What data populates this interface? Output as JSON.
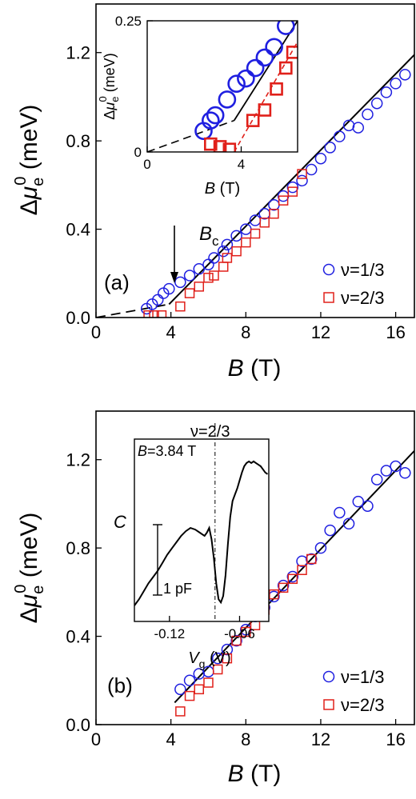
{
  "colors": {
    "nu13": "#1f1fe0",
    "nu23": "#e0201a",
    "fit": "#000000"
  },
  "chart_data": [
    {
      "type": "scatter",
      "panel_label": "(a)",
      "xlabel": "B (T)",
      "ylabel": "Δμe0 (meV)",
      "xlim": [
        0,
        17
      ],
      "ylim": [
        0,
        1.42
      ],
      "xticks": [
        0,
        4,
        8,
        12,
        16
      ],
      "yticks": [
        0.0,
        0.4,
        0.8,
        1.2
      ],
      "xtick_labels": [
        "0",
        "4",
        "8",
        "12",
        "16"
      ],
      "ytick_labels": [
        "0.0",
        "0.4",
        "0.8",
        "1.2"
      ],
      "legend_position": "bottom-right",
      "series": [
        {
          "name": "ν=1/3",
          "marker": "circle",
          "x": [
            2.7,
            3.0,
            3.3,
            3.6,
            3.9,
            4.5,
            5.0,
            5.5,
            6.0,
            6.3,
            6.8,
            7.0,
            7.5,
            8.0,
            8.5,
            9.0,
            9.5,
            10.0,
            10.5,
            11.0,
            11.5,
            12.0,
            12.5,
            13.0,
            13.5,
            14.0,
            14.5,
            15.0,
            15.5,
            16.0,
            16.5
          ],
          "y": [
            0.04,
            0.06,
            0.08,
            0.11,
            0.13,
            0.16,
            0.19,
            0.22,
            0.24,
            0.27,
            0.3,
            0.33,
            0.37,
            0.4,
            0.44,
            0.47,
            0.51,
            0.55,
            0.59,
            0.62,
            0.67,
            0.72,
            0.77,
            0.82,
            0.87,
            0.86,
            0.92,
            0.97,
            1.02,
            1.06,
            1.1
          ]
        },
        {
          "name": "ν=2/3",
          "marker": "square",
          "x": [
            2.8,
            3.1,
            3.5,
            4.5,
            5.0,
            5.5,
            6.0,
            6.3,
            6.8,
            7.0,
            7.5,
            8.0,
            8.5,
            9.0,
            9.5,
            10.0,
            10.5,
            11.0
          ],
          "y": [
            0.01,
            0.01,
            0.01,
            0.05,
            0.11,
            0.14,
            0.18,
            0.19,
            0.23,
            0.27,
            0.3,
            0.34,
            0.38,
            0.43,
            0.47,
            0.53,
            0.57,
            0.65
          ]
        }
      ],
      "fit_line": {
        "solid": [
          [
            3.9,
            0.06
          ],
          [
            17,
            1.19
          ]
        ],
        "dashed": [
          [
            0,
            0
          ],
          [
            3.9,
            0.06
          ]
        ]
      },
      "annotation": {
        "text_main": "B",
        "text_sub": "c",
        "arrow_x": 3.9
      },
      "inset": {
        "xlim": [
          0,
          6.4
        ],
        "ylim": [
          0,
          0.25
        ],
        "xticks": [
          0,
          4
        ],
        "yticks": [
          0,
          0.25
        ],
        "xtick_labels": [
          "0",
          "4"
        ],
        "ytick_labels": [
          "0",
          "0.25"
        ],
        "xlabel": "B (T)",
        "ylabel": "Δμe0 (meV)",
        "series": [
          {
            "name": "ν=1/3",
            "marker": "circle",
            "x": [
              2.4,
              2.7,
              2.9,
              3.4,
              3.8,
              4.2,
              4.6,
              5.0,
              5.4,
              5.9
            ],
            "y": [
              0.04,
              0.06,
              0.07,
              0.1,
              0.13,
              0.14,
              0.16,
              0.18,
              0.2,
              0.24
            ]
          },
          {
            "name": "ν=2/3",
            "marker": "square",
            "x": [
              2.7,
              3.1,
              3.5,
              4.5,
              5.0,
              5.5,
              5.9,
              6.2
            ],
            "y": [
              0.015,
              0.01,
              0.005,
              0.06,
              0.08,
              0.12,
              0.16,
              0.19
            ]
          }
        ],
        "fit_line": {
          "solid": [
            [
              3.7,
              0.06
            ],
            [
              6.4,
              0.25
            ]
          ],
          "dashed": [
            [
              0,
              0
            ],
            [
              3.7,
              0.06
            ]
          ],
          "red_dashed": [
            [
              3.7,
              0.0
            ],
            [
              6.4,
              0.21
            ]
          ]
        }
      }
    },
    {
      "type": "scatter",
      "panel_label": "(b)",
      "xlabel": "B (T)",
      "ylabel": "Δμe0 (meV)",
      "xlim": [
        0,
        17
      ],
      "ylim": [
        0,
        1.42
      ],
      "xticks": [
        0,
        4,
        8,
        12,
        16
      ],
      "yticks": [
        0.0,
        0.4,
        0.8,
        1.2
      ],
      "xtick_labels": [
        "0",
        "4",
        "8",
        "12",
        "16"
      ],
      "ytick_labels": [
        "0.0",
        "0.4",
        "0.8",
        "1.2"
      ],
      "legend_position": "bottom-right",
      "series": [
        {
          "name": "ν=1/3",
          "marker": "circle",
          "x": [
            4.5,
            5.0,
            5.5,
            6.0,
            6.5,
            7.0,
            7.5,
            8.0,
            8.5,
            9.0,
            9.5,
            10.0,
            10.5,
            11.0,
            11.5,
            12.0,
            12.5,
            13.0,
            13.5,
            14.0,
            14.5,
            15.0,
            15.5,
            16.0,
            16.5
          ],
          "y": [
            0.16,
            0.2,
            0.23,
            0.24,
            0.3,
            0.34,
            0.38,
            0.43,
            0.49,
            0.53,
            0.58,
            0.63,
            0.67,
            0.74,
            0.75,
            0.8,
            0.88,
            0.96,
            0.91,
            1.01,
            0.99,
            1.11,
            1.15,
            1.17,
            1.14
          ]
        },
        {
          "name": "ν=2/3",
          "marker": "square",
          "x": [
            4.5,
            5.0,
            5.5,
            6.0,
            6.5,
            7.0,
            7.5,
            8.0,
            8.5,
            9.0,
            9.5,
            10.0,
            10.5,
            11.0,
            11.5
          ],
          "y": [
            0.06,
            0.13,
            0.16,
            0.19,
            0.25,
            0.3,
            0.38,
            0.42,
            0.45,
            0.52,
            0.59,
            0.62,
            0.66,
            0.7,
            0.75
          ]
        }
      ],
      "fit_line": {
        "solid": [
          [
            4.2,
            0.1
          ],
          [
            17,
            1.24
          ]
        ]
      },
      "inset": {
        "xlim": [
          -0.15,
          -0.035
        ],
        "ylim": [
          0,
          1
        ],
        "xticks": [
          -0.12,
          -0.06
        ],
        "xtick_labels": [
          "-0.12",
          "-0.06"
        ],
        "xlabel": "Vg (V)",
        "ylabel": "C",
        "annotation_B": "B=3.84 T",
        "annotation_nu": "ν=2/3",
        "scale_bar": "1 pF",
        "dashdot_x": -0.081,
        "trace": {
          "x": [
            -0.15,
            -0.146,
            -0.142,
            -0.138,
            -0.134,
            -0.13,
            -0.126,
            -0.122,
            -0.118,
            -0.114,
            -0.11,
            -0.106,
            -0.102,
            -0.098,
            -0.094,
            -0.09,
            -0.088,
            -0.086,
            -0.084,
            -0.082,
            -0.08,
            -0.078,
            -0.076,
            -0.074,
            -0.072,
            -0.07,
            -0.068,
            -0.066,
            -0.064,
            -0.062,
            -0.06,
            -0.058,
            -0.056,
            -0.054,
            -0.052,
            -0.05,
            -0.048,
            -0.046,
            -0.044,
            -0.042,
            -0.04,
            -0.038,
            -0.036
          ],
          "y": [
            0.06,
            0.1,
            0.15,
            0.2,
            0.24,
            0.28,
            0.33,
            0.38,
            0.42,
            0.46,
            0.5,
            0.53,
            0.55,
            0.54,
            0.52,
            0.5,
            0.52,
            0.55,
            0.48,
            0.36,
            0.2,
            0.1,
            0.08,
            0.12,
            0.25,
            0.45,
            0.62,
            0.72,
            0.76,
            0.8,
            0.85,
            0.9,
            0.94,
            0.96,
            0.97,
            0.96,
            0.97,
            0.96,
            0.95,
            0.94,
            0.92,
            0.9,
            0.89
          ]
        }
      }
    }
  ]
}
